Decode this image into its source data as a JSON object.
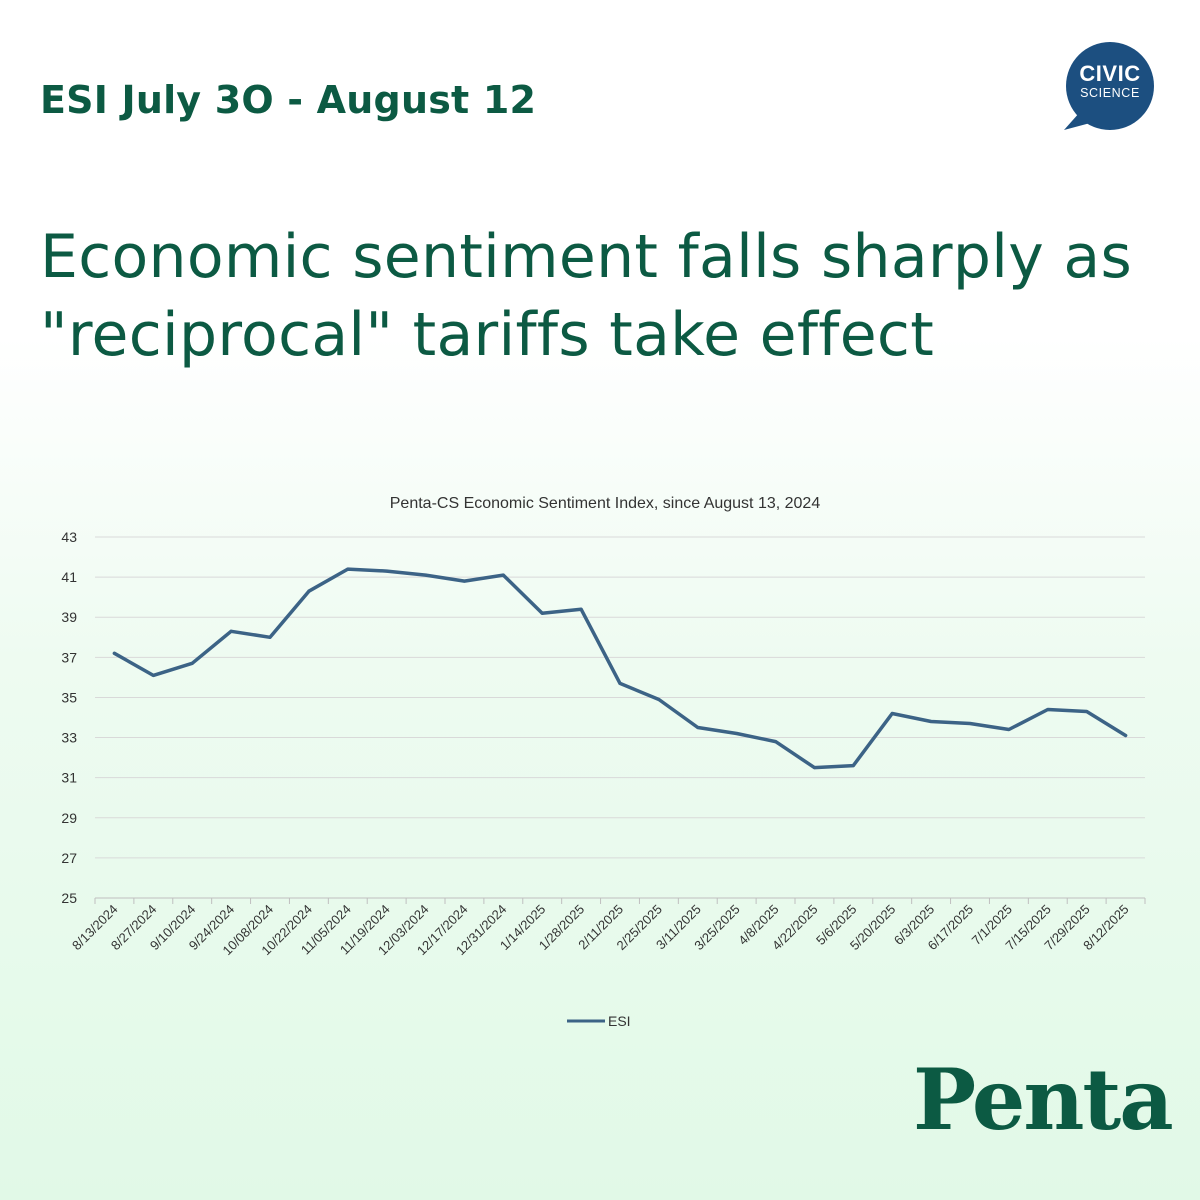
{
  "header": {
    "kicker": "ESI July 3O - August 12",
    "headline": "Economic sentiment falls sharply as \"reciprocal\" tariffs take effect"
  },
  "logos": {
    "civic_line1": "CIVIC",
    "civic_line2": "SCIENCE",
    "brand": "Penta"
  },
  "colors": {
    "brand_green": "#0c5a43",
    "series_line": "#3c6386",
    "civic_badge": "#1c4f80",
    "gridline": "#d9d9d9"
  },
  "chart_data": {
    "type": "line",
    "title": "Penta-CS Economic Sentiment Index, since August 13, 2024",
    "xlabel": "",
    "ylabel": "",
    "ylim": [
      25,
      43
    ],
    "yticks": [
      43,
      41,
      39,
      37,
      35,
      33,
      31,
      29,
      27,
      25
    ],
    "grid": true,
    "legend_position": "bottom",
    "categories": [
      "8/13/2024",
      "8/27/2024",
      "9/10/2024",
      "9/24/2024",
      "10/08/2024",
      "10/22/2024",
      "11/05/2024",
      "11/19/2024",
      "12/03/2024",
      "12/17/2024",
      "12/31/2024",
      "1/14/2025",
      "1/28/2025",
      "2/11/2025",
      "2/25/2025",
      "3/11/2025",
      "3/25/2025",
      "4/8/2025",
      "4/22/2025",
      "5/6/2025",
      "5/20/2025",
      "6/3/2025",
      "6/17/2025",
      "7/1/2025",
      "7/15/2025",
      "7/29/2025",
      "8/12/2025"
    ],
    "series": [
      {
        "name": "ESI",
        "values": [
          37.2,
          36.1,
          36.7,
          38.3,
          38.0,
          40.3,
          41.4,
          41.3,
          41.1,
          40.8,
          41.1,
          39.2,
          39.4,
          35.7,
          34.9,
          33.5,
          33.2,
          32.8,
          31.5,
          31.6,
          34.2,
          33.8,
          33.7,
          33.4,
          34.4,
          34.3,
          33.1
        ]
      }
    ]
  }
}
